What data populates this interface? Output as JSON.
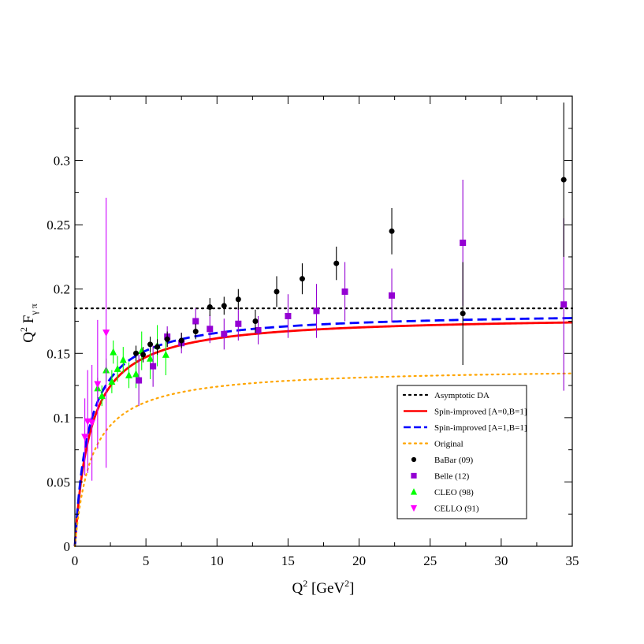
{
  "chart_data": {
    "type": "scatter",
    "xlabel": "Q",
    "xlabel_sup": "2",
    "xlabel_suffix": " [GeV",
    "xlabel_suffix_sup": "2",
    "xlabel_end": "]",
    "ylabel_main": "Q",
    "ylabel_sup": "2",
    "ylabel_f": " F",
    "ylabel_sub": "γ π",
    "xlim": [
      0,
      35
    ],
    "ylim": [
      0,
      0.35
    ],
    "xticks": [
      0,
      5,
      10,
      15,
      20,
      25,
      30,
      35
    ],
    "yticks": [
      0,
      0.05,
      0.1,
      0.15,
      0.2,
      0.25,
      0.3
    ],
    "xtick_labels": [
      "0",
      "5",
      "10",
      "15",
      "20",
      "25",
      "30",
      "35"
    ],
    "ytick_labels": [
      "0",
      "0.05",
      "0.1",
      "0.15",
      "0.2",
      "0.25",
      "0.3"
    ],
    "grid": false,
    "legend_position": "lower-right",
    "lines": [
      {
        "name": "Asymptotic DA",
        "color": "#000000",
        "dash": "dotted",
        "kind": "const",
        "value": 0.185
      },
      {
        "name": "Spin-improved [A=0,B=1]",
        "color": "#ff0000",
        "dash": "solid",
        "kind": "sat",
        "amp": 0.1795,
        "k": 1.1
      },
      {
        "name": "Spin-improved [A=1,B=1]",
        "color": "#0000ff",
        "dash": "dashed",
        "kind": "sat",
        "amp": 0.1825,
        "k": 1.0
      },
      {
        "name": "Original",
        "color": "#ffa500",
        "dash": "dotted",
        "kind": "sat",
        "amp": 0.139,
        "k": 1.2
      }
    ],
    "series": [
      {
        "name": "BaBar (09)",
        "color": "#000000",
        "marker": "circle",
        "errcolor": "#000000",
        "points": [
          {
            "x": 4.3,
            "y": 0.15,
            "e": 0.006
          },
          {
            "x": 4.8,
            "y": 0.149,
            "e": 0.006
          },
          {
            "x": 5.3,
            "y": 0.157,
            "e": 0.006
          },
          {
            "x": 5.8,
            "y": 0.155,
            "e": 0.006
          },
          {
            "x": 6.5,
            "y": 0.161,
            "e": 0.006
          },
          {
            "x": 7.5,
            "y": 0.16,
            "e": 0.006
          },
          {
            "x": 8.5,
            "y": 0.167,
            "e": 0.006
          },
          {
            "x": 9.5,
            "y": 0.186,
            "e": 0.007
          },
          {
            "x": 10.5,
            "y": 0.187,
            "e": 0.007
          },
          {
            "x": 11.5,
            "y": 0.192,
            "e": 0.008
          },
          {
            "x": 12.7,
            "y": 0.175,
            "e": 0.009
          },
          {
            "x": 14.2,
            "y": 0.198,
            "e": 0.012
          },
          {
            "x": 16.0,
            "y": 0.208,
            "e": 0.012
          },
          {
            "x": 18.4,
            "y": 0.22,
            "e": 0.013
          },
          {
            "x": 22.3,
            "y": 0.245,
            "e": 0.018
          },
          {
            "x": 27.3,
            "y": 0.181,
            "e": 0.04
          },
          {
            "x": 34.4,
            "y": 0.285,
            "e": 0.06
          }
        ]
      },
      {
        "name": "Belle (12)",
        "color": "#9400d3",
        "marker": "square",
        "errcolor": "#9400d3",
        "points": [
          {
            "x": 4.5,
            "y": 0.129,
            "e": 0.02
          },
          {
            "x": 5.5,
            "y": 0.14,
            "e": 0.016
          },
          {
            "x": 6.5,
            "y": 0.163,
            "e": 0.008
          },
          {
            "x": 7.5,
            "y": 0.158,
            "e": 0.008
          },
          {
            "x": 8.5,
            "y": 0.175,
            "e": 0.01
          },
          {
            "x": 9.5,
            "y": 0.169,
            "e": 0.011
          },
          {
            "x": 10.5,
            "y": 0.165,
            "e": 0.012
          },
          {
            "x": 11.5,
            "y": 0.173,
            "e": 0.013
          },
          {
            "x": 12.9,
            "y": 0.168,
            "e": 0.011
          },
          {
            "x": 15.0,
            "y": 0.179,
            "e": 0.017
          },
          {
            "x": 17.0,
            "y": 0.183,
            "e": 0.021
          },
          {
            "x": 19.0,
            "y": 0.198,
            "e": 0.023
          },
          {
            "x": 22.3,
            "y": 0.195,
            "e": 0.021
          },
          {
            "x": 27.3,
            "y": 0.236,
            "e": 0.049
          },
          {
            "x": 34.4,
            "y": 0.188,
            "e": 0.067
          }
        ]
      },
      {
        "name": "CLEO (98)",
        "color": "#00ff00",
        "marker": "triangle-up",
        "errcolor": "#00ff00",
        "points": [
          {
            "x": 1.6,
            "y": 0.123,
            "e": 0.008
          },
          {
            "x": 1.9,
            "y": 0.117,
            "e": 0.008
          },
          {
            "x": 2.2,
            "y": 0.137,
            "e": 0.009
          },
          {
            "x": 2.6,
            "y": 0.128,
            "e": 0.009
          },
          {
            "x": 2.7,
            "y": 0.151,
            "e": 0.009
          },
          {
            "x": 3.0,
            "y": 0.138,
            "e": 0.01
          },
          {
            "x": 3.4,
            "y": 0.145,
            "e": 0.01
          },
          {
            "x": 3.8,
            "y": 0.133,
            "e": 0.01
          },
          {
            "x": 4.3,
            "y": 0.134,
            "e": 0.011
          },
          {
            "x": 4.7,
            "y": 0.152,
            "e": 0.015
          },
          {
            "x": 5.3,
            "y": 0.146,
            "e": 0.016
          },
          {
            "x": 5.8,
            "y": 0.156,
            "e": 0.016
          },
          {
            "x": 6.4,
            "y": 0.149,
            "e": 0.016
          }
        ]
      },
      {
        "name": "CELLO (91)",
        "color": "#ff00ff",
        "marker": "triangle-down",
        "errcolor": "#cc00ff",
        "points": [
          {
            "x": 0.7,
            "y": 0.085,
            "e": 0.03
          },
          {
            "x": 0.9,
            "y": 0.097,
            "e": 0.04
          },
          {
            "x": 1.2,
            "y": 0.096,
            "e": 0.045
          },
          {
            "x": 1.6,
            "y": 0.126,
            "e": 0.05
          },
          {
            "x": 2.2,
            "y": 0.166,
            "e": 0.105
          }
        ]
      }
    ],
    "legend": [
      {
        "label": "Asymptotic DA",
        "type": "line",
        "color": "#000000",
        "dash": "dotted"
      },
      {
        "label": "Spin-improved [A=0,B=1]",
        "type": "line",
        "color": "#ff0000",
        "dash": "solid"
      },
      {
        "label": "Spin-improved [A=1,B=1]",
        "type": "line",
        "color": "#0000ff",
        "dash": "dashed"
      },
      {
        "label": "Original",
        "type": "line",
        "color": "#ffa500",
        "dash": "dotted"
      },
      {
        "label": "BaBar (09)",
        "type": "marker",
        "color": "#000000",
        "marker": "circle"
      },
      {
        "label": "Belle (12)",
        "type": "marker",
        "color": "#9400d3",
        "marker": "square"
      },
      {
        "label": "CLEO (98)",
        "type": "marker",
        "color": "#00ff00",
        "marker": "triangle-up"
      },
      {
        "label": "CELLO (91)",
        "type": "marker",
        "color": "#ff00ff",
        "marker": "triangle-down"
      }
    ]
  }
}
